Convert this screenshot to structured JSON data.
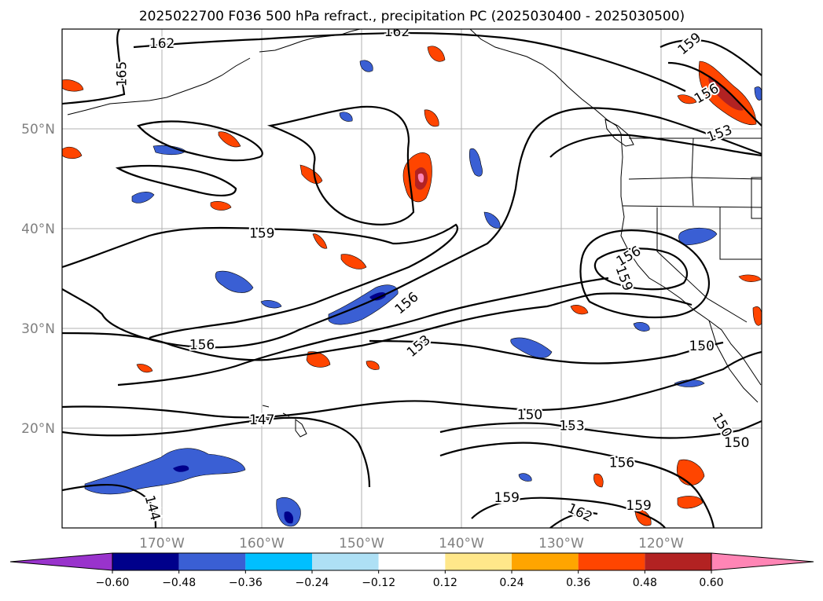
{
  "title": "2025022700 F036 500 hPa refract., precipitation PC (2025030400 - 2025030500)",
  "map": {
    "lat_labels": [
      "50°N",
      "40°N",
      "30°N",
      "20°N"
    ],
    "lat_values": [
      50,
      40,
      30,
      20
    ],
    "lon_labels": [
      "170°W",
      "160°W",
      "150°W",
      "140°W",
      "130°W",
      "120°W"
    ],
    "lon_values": [
      -170,
      -160,
      -150,
      -140,
      -130,
      -120
    ],
    "lon_range": [
      -180,
      -110
    ],
    "lat_range": [
      10,
      60
    ],
    "grid": true
  },
  "contours": {
    "color": "#000000",
    "labels": [
      {
        "text": "162",
        "lon": -170,
        "lat": 58.5
      },
      {
        "text": "162",
        "lon": -146.5,
        "lat": 59.7
      },
      {
        "text": "165",
        "lon": -174,
        "lat": 55.5,
        "rotate": 90
      },
      {
        "text": "159",
        "lon": -117.2,
        "lat": 58.5,
        "rotate": 40
      },
      {
        "text": "156",
        "lon": -115.5,
        "lat": 53.5,
        "rotate": 30
      },
      {
        "text": "153",
        "lon": -114.2,
        "lat": 49.5,
        "rotate": 20
      },
      {
        "text": "159",
        "lon": -160,
        "lat": 39.5
      },
      {
        "text": "156",
        "lon": -123.3,
        "lat": 37.2,
        "rotate": 30
      },
      {
        "text": "159",
        "lon": -123.8,
        "lat": 35,
        "rotate": -70
      },
      {
        "text": "156",
        "lon": -145.5,
        "lat": 32.5,
        "rotate": 40
      },
      {
        "text": "156",
        "lon": -166,
        "lat": 28.3
      },
      {
        "text": "153",
        "lon": -144.3,
        "lat": 28.2,
        "rotate": 40
      },
      {
        "text": "150",
        "lon": -116,
        "lat": 28.2
      },
      {
        "text": "150",
        "lon": -133.2,
        "lat": 21.3
      },
      {
        "text": "153",
        "lon": -129,
        "lat": 20.2
      },
      {
        "text": "147",
        "lon": -160,
        "lat": 20.8
      },
      {
        "text": "150",
        "lon": -114,
        "lat": 20.3,
        "rotate": -60
      },
      {
        "text": "150",
        "lon": -112.5,
        "lat": 18.5
      },
      {
        "text": "156",
        "lon": -124,
        "lat": 16.5
      },
      {
        "text": "159",
        "lon": -135.5,
        "lat": 13
      },
      {
        "text": "162",
        "lon": -128.2,
        "lat": 11.5,
        "rotate": -25
      },
      {
        "text": "159",
        "lon": -122.3,
        "lat": 12.2
      },
      {
        "text": "144",
        "lon": -171,
        "lat": 12,
        "rotate": -75
      }
    ]
  },
  "colorbar": {
    "colors": [
      "#9933cc",
      "#00008b",
      "#3a5fd4",
      "#00bfff",
      "#aee0f5",
      "#ffffff",
      "#ffe78a",
      "#ffa500",
      "#ff4500",
      "#b22222",
      "#ff85b5"
    ],
    "tick_labels": [
      "−0.60",
      "−0.48",
      "−0.36",
      "−0.24",
      "−0.12",
      "0.12",
      "0.24",
      "0.36",
      "0.48",
      "0.60"
    ],
    "tick_values": [
      -0.6,
      -0.48,
      -0.36,
      -0.24,
      -0.12,
      0.12,
      0.24,
      0.36,
      0.48,
      0.6
    ]
  }
}
